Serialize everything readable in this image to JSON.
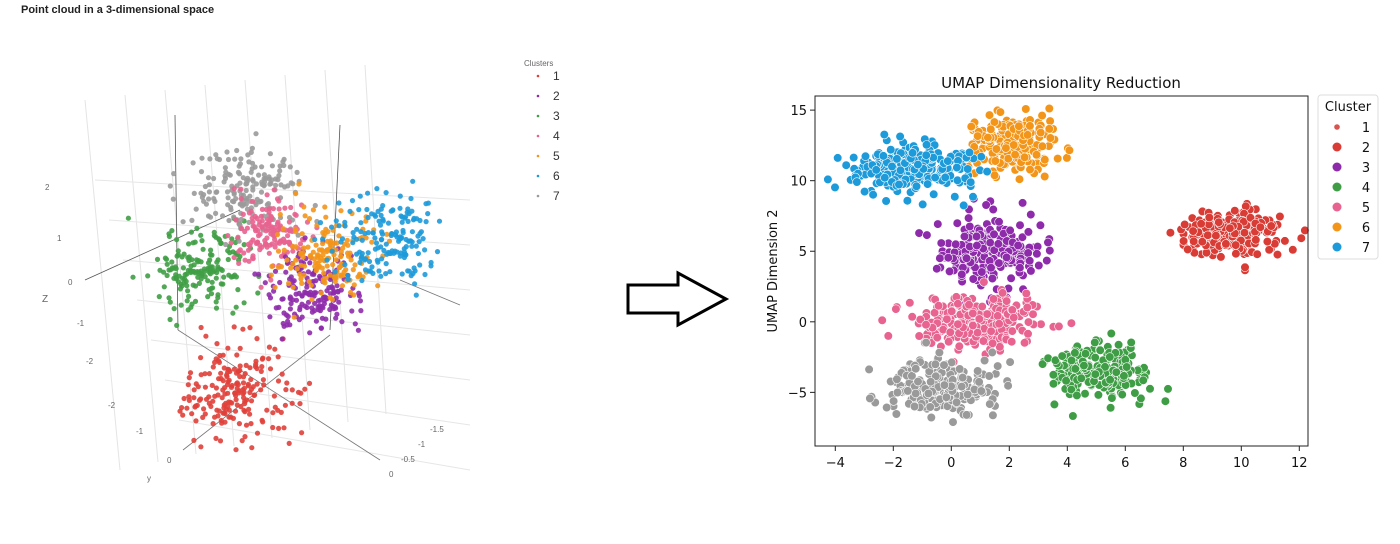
{
  "chart_data": [
    {
      "type": "scatter",
      "title": "Point cloud in a 3-dimensional space",
      "projection": "3d",
      "legend_title": "Clusters",
      "legend_position": "top-right",
      "axes": {
        "z": {
          "label": "Z",
          "ticks": [
            "2",
            "1",
            "0",
            "-1",
            "-2"
          ]
        },
        "y": {
          "label": "y",
          "ticks": [
            "-2",
            "-1",
            "0"
          ]
        },
        "x": {
          "ticks": [
            "-1.5",
            "-1",
            "-0.5",
            "0"
          ]
        }
      },
      "series": [
        {
          "name": "1",
          "color": "#e0403a",
          "center": [
            -1.0,
            0,
            -0.9
          ],
          "sd": 0.45,
          "n": 200
        },
        {
          "name": "2",
          "color": "#8e2bab",
          "center": [
            0.36,
            0,
            0.65
          ],
          "sd": 0.35,
          "n": 170
        },
        {
          "name": "3",
          "color": "#3f9e45",
          "center": [
            -0.91,
            1,
            1.06
          ],
          "sd": 0.35,
          "n": 170
        },
        {
          "name": "4",
          "color": "#e8638f",
          "center": [
            0,
            0.5,
            1.65
          ],
          "sd": 0.3,
          "n": 150
        },
        {
          "name": "5",
          "color": "#f39519",
          "center": [
            0.73,
            0,
            1.21
          ],
          "sd": 0.35,
          "n": 170
        },
        {
          "name": "6",
          "color": "#1d9ad9",
          "center": [
            1.36,
            -0.5,
            1.5
          ],
          "sd": 0.4,
          "n": 170
        },
        {
          "name": "7",
          "color": "#9a9a9a",
          "center": [
            -0.09,
            1,
            2.34
          ],
          "sd": 0.4,
          "n": 170
        }
      ]
    },
    {
      "type": "scatter",
      "title": "UMAP Dimensionality Reduction",
      "xlabel": "",
      "ylabel": "UMAP Dimension 2",
      "xlim": [
        -4.7,
        12.3
      ],
      "ylim": [
        -8.8,
        16.0
      ],
      "xticks": [
        "-4",
        "-2",
        "0",
        "2",
        "4",
        "6",
        "8",
        "10",
        "12"
      ],
      "yticks": [
        "-5",
        "0",
        "5",
        "10",
        "15"
      ],
      "legend_title": "Cluster",
      "legend_position": "right",
      "series": [
        {
          "name": "1",
          "color": "#d9534f",
          "legend_small": true,
          "points": 0
        },
        {
          "name": "2",
          "color": "#d93b35",
          "center": [
            9.6,
            6.3
          ],
          "sd": [
            0.8,
            0.8
          ],
          "n": 260
        },
        {
          "name": "3",
          "color": "#8e2bab",
          "center": [
            1.2,
            5.0
          ],
          "sd": [
            0.9,
            1.2
          ],
          "n": 230
        },
        {
          "name": "4",
          "color": "#3f9e45",
          "center": [
            5.1,
            -3.6
          ],
          "sd": [
            0.85,
            0.9
          ],
          "n": 220
        },
        {
          "name": "5",
          "color": "#e8638f",
          "center": [
            0.9,
            0.0
          ],
          "sd": [
            1.1,
            1.0
          ],
          "n": 240
        },
        {
          "name": "6",
          "color": "#f39519",
          "center": [
            2.2,
            12.5
          ],
          "sd": [
            0.8,
            1.0
          ],
          "n": 200
        },
        {
          "name": "7",
          "color": "#1d9ad9",
          "center": [
            -1.3,
            10.8
          ],
          "sd": [
            1.1,
            0.9
          ],
          "n": 240
        },
        {
          "name": "",
          "color": "#9a9a9a",
          "legend": false,
          "center": [
            -0.4,
            -4.6
          ],
          "sd": [
            0.95,
            1.0
          ],
          "n": 220
        }
      ]
    }
  ]
}
